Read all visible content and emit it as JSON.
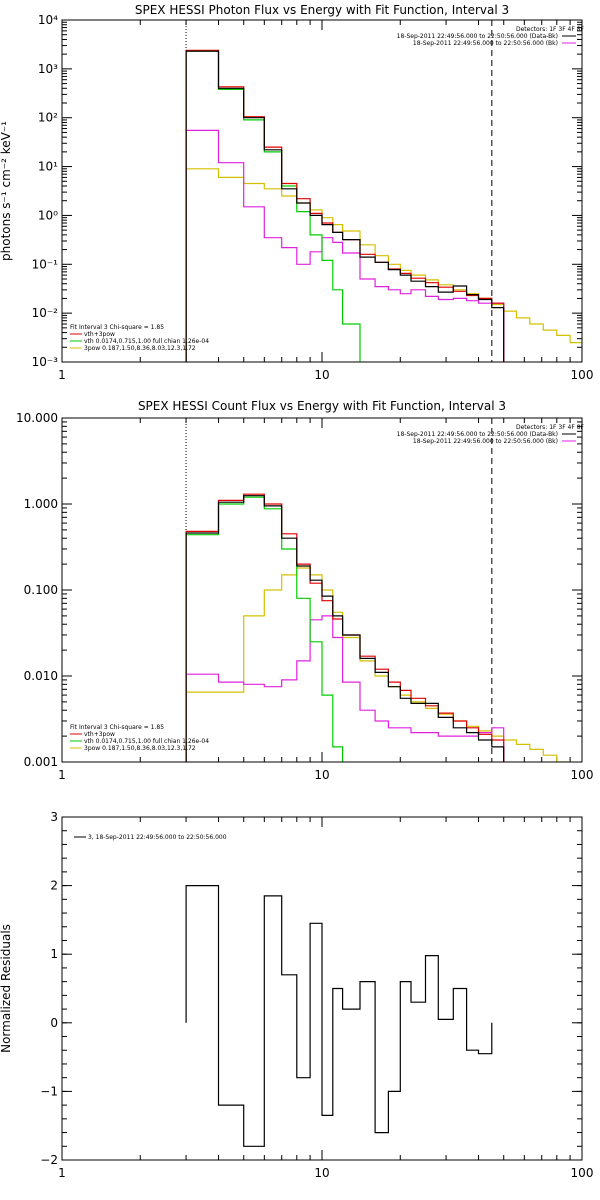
{
  "chart_data": [
    {
      "type": "line",
      "title": "SPEX HESSI Photon Flux vs Energy with Fit Function, Interval 3",
      "xlabel": "",
      "ylabel": "photons s⁻¹ cm⁻² keV⁻¹",
      "xscale": "log",
      "yscale": "log",
      "xlim": [
        1,
        100
      ],
      "ylim": [
        0.001,
        10000
      ],
      "x_ticks": [
        "1",
        "10",
        "100"
      ],
      "y_ticks": [
        "10⁻³",
        "10⁻²",
        "10⁻¹",
        "10⁰",
        "10¹",
        "10²",
        "10³",
        "10⁴"
      ],
      "energy_range_markers": [
        3,
        45
      ],
      "legend_right": {
        "header": "Detectors: 1F 3F 4F 8F",
        "entries": [
          {
            "text": "18-Sep-2011 22:49:56.000 to 22:50:56.000 (Data-Bk)",
            "color": "#000000"
          },
          {
            "text": "18-Sep-2011 22:49:56.000 to 22:50:56.000 (Bk)",
            "color": "#e020e0"
          }
        ]
      },
      "legend_left": {
        "header": "Fit Interval 3   Chi-square = 1.85",
        "entries": [
          {
            "text": "vth+3pow",
            "color": "#e00000"
          },
          {
            "text": "vth 0.0174,0.715,1.00  full chian 1.26e-04",
            "color": "#00cc00"
          },
          {
            "text": "3pow 0.187,1.50,8.36,8.03,12.3,1.72",
            "color": "#d4c000"
          }
        ]
      },
      "bin_edges": [
        3.0,
        4.0,
        5.0,
        6.0,
        7.0,
        8.0,
        9.0,
        10.0,
        11.0,
        12.0,
        14.0,
        16.0,
        18.0,
        20.0,
        22.0,
        25.0,
        28.0,
        32.0,
        36.0,
        40.0,
        45.0,
        50.0,
        56.0,
        63.0,
        71.0,
        80.0,
        90.0,
        100.0
      ],
      "series": [
        {
          "name": "",
          "color": "#000000",
          "values": [
            2300,
            400,
            100,
            22,
            3.5,
            1.8,
            1.0,
            0.65,
            0.45,
            0.32,
            0.14,
            0.11,
            0.078,
            0.06,
            0.045,
            0.035,
            0.027,
            0.036,
            0.024,
            0.019,
            0.013
          ]
        },
        {
          "name": "",
          "color": "#e020e0",
          "values": [
            55,
            12,
            1.5,
            0.35,
            0.22,
            0.1,
            0.18,
            0.35,
            0.28,
            0.17,
            0.05,
            0.035,
            0.03,
            0.025,
            0.03,
            0.022,
            0.019,
            0.02,
            0.018,
            0.016,
            0.016
          ]
        },
        {
          "name": "vth+3pow",
          "color": "#e00000",
          "values": [
            2400,
            430,
            105,
            25,
            4.5,
            2.2,
            1.1,
            0.7,
            0.45,
            0.32,
            0.16,
            0.11,
            0.08,
            0.065,
            0.052,
            0.042,
            0.034,
            0.028,
            0.023,
            0.02,
            0.016
          ]
        },
        {
          "name": "vth 0.0174,0.715,1.00  full chian 1.26e-04",
          "color": "#00cc00",
          "values": [
            2300,
            380,
            90,
            20,
            4.0,
            1.2,
            0.4,
            0.12,
            0.03,
            0.006,
            0.0001
          ]
        },
        {
          "name": "3pow 0.187,1.50,8.36,8.03,12.3,1.72",
          "color": "#d4c000",
          "values": [
            9,
            6,
            4.5,
            3.5,
            2.5,
            1.8,
            1.3,
            0.9,
            0.65,
            0.48,
            0.25,
            0.15,
            0.1,
            0.075,
            0.06,
            0.048,
            0.038,
            0.03,
            0.025,
            0.02,
            0.015,
            0.011,
            0.008,
            0.006,
            0.0045,
            0.0035,
            0.0025
          ]
        }
      ]
    },
    {
      "type": "line",
      "title": "SPEX HESSI Count Flux vs Energy with Fit Function, Interval 3",
      "xlabel": "",
      "ylabel": "",
      "xscale": "log",
      "yscale": "log",
      "xlim": [
        1,
        100
      ],
      "ylim": [
        0.001,
        10
      ],
      "x_ticks": [
        "1",
        "10",
        "100"
      ],
      "y_ticks": [
        "0.001",
        "0.010",
        "0.100",
        "1.000",
        "10.000"
      ],
      "energy_range_markers": [
        3,
        45
      ],
      "legend_right": {
        "header": "Detectors: 1F 3F 4F 8F",
        "entries": [
          {
            "text": "18-Sep-2011 22:49:56.000 to 22:50:56.000 (Data-Bk)",
            "color": "#000000"
          },
          {
            "text": "18-Sep-2011 22:49:56.000 to 22:50:56.000 (Bk)",
            "color": "#e020e0"
          }
        ]
      },
      "legend_left": {
        "header": "Fit Interval 3   Chi-square = 1.85",
        "entries": [
          {
            "text": "vth+3pow",
            "color": "#e00000"
          },
          {
            "text": "vth 0.0174,0.715,1.00  full chian 1.26e-04",
            "color": "#00cc00"
          },
          {
            "text": "3pow 0.187,1.50,8.36,8.03,12.3,1.72",
            "color": "#d4c000"
          }
        ]
      },
      "bin_edges": [
        3.0,
        4.0,
        5.0,
        6.0,
        7.0,
        8.0,
        9.0,
        10.0,
        11.0,
        12.0,
        14.0,
        16.0,
        18.0,
        20.0,
        22.0,
        25.0,
        28.0,
        32.0,
        36.0,
        40.0,
        45.0,
        50.0,
        56.0,
        63.0,
        71.0,
        80.0,
        90.0,
        100.0
      ],
      "series": [
        {
          "name": "",
          "color": "#000000",
          "values": [
            0.46,
            1.05,
            1.25,
            0.95,
            0.4,
            0.19,
            0.13,
            0.085,
            0.05,
            0.03,
            0.016,
            0.011,
            0.0075,
            0.0055,
            0.0048,
            0.0048,
            0.0033,
            0.0025,
            0.0022,
            0.0018,
            0.0015
          ]
        },
        {
          "name": "",
          "color": "#e020e0",
          "values": [
            0.0105,
            0.0085,
            0.008,
            0.0075,
            0.009,
            0.015,
            0.045,
            0.05,
            0.028,
            0.0085,
            0.004,
            0.003,
            0.0025,
            0.0025,
            0.0022,
            0.0022,
            0.002,
            0.002,
            0.002,
            0.0022,
            0.0025
          ]
        },
        {
          "name": "vth+3pow",
          "color": "#e00000",
          "values": [
            0.48,
            1.1,
            1.3,
            1.0,
            0.45,
            0.2,
            0.12,
            0.075,
            0.046,
            0.03,
            0.017,
            0.012,
            0.0085,
            0.0068,
            0.0055,
            0.0045,
            0.0037,
            0.003,
            0.0025,
            0.0021,
            0.0018
          ]
        },
        {
          "name": "vth 0.0174,0.715,1.00  full chian 1.26e-04",
          "color": "#00cc00",
          "values": [
            0.44,
            1.0,
            1.2,
            0.88,
            0.3,
            0.08,
            0.025,
            0.006,
            0.0015,
            0.0005
          ]
        },
        {
          "name": "3pow 0.187,1.50,8.36,8.03,12.3,1.72",
          "color": "#d4c000",
          "values": [
            0.0065,
            0.0065,
            0.05,
            0.1,
            0.15,
            0.18,
            0.15,
            0.1,
            0.055,
            0.028,
            0.015,
            0.01,
            0.0075,
            0.006,
            0.005,
            0.0042,
            0.0036,
            0.003,
            0.0026,
            0.0023,
            0.002,
            0.0018,
            0.0016,
            0.0014,
            0.0012,
            0.001
          ]
        }
      ]
    },
    {
      "type": "line",
      "title": "",
      "xlabel": "",
      "ylabel": "Normalized Residuals",
      "xscale": "log",
      "yscale": "linear",
      "xlim": [
        1,
        100
      ],
      "ylim": [
        -2,
        3
      ],
      "x_ticks": [
        "1",
        "10",
        "100"
      ],
      "y_ticks": [
        "−2",
        "−1",
        "0",
        "1",
        "2",
        "3"
      ],
      "legend": {
        "entries": [
          {
            "text": "3, 18-Sep-2011 22:49:56.000 to 22:50:56.000",
            "color": "#000000"
          }
        ]
      },
      "bin_edges": [
        3.0,
        4.0,
        5.0,
        6.0,
        7.0,
        8.0,
        9.0,
        10.0,
        11.0,
        12.0,
        14.0,
        16.0,
        18.0,
        20.0,
        22.0,
        25.0,
        28.0,
        32.0,
        36.0,
        40.0,
        45.0
      ],
      "series": [
        {
          "name": "",
          "color": "#000000",
          "values": [
            2.0,
            -1.2,
            -1.8,
            1.85,
            0.7,
            -0.8,
            1.45,
            -1.35,
            0.5,
            0.2,
            0.6,
            -1.6,
            -1.0,
            0.6,
            0.3,
            0.98,
            0.05,
            0.5,
            -0.4,
            -0.45
          ]
        }
      ]
    }
  ]
}
